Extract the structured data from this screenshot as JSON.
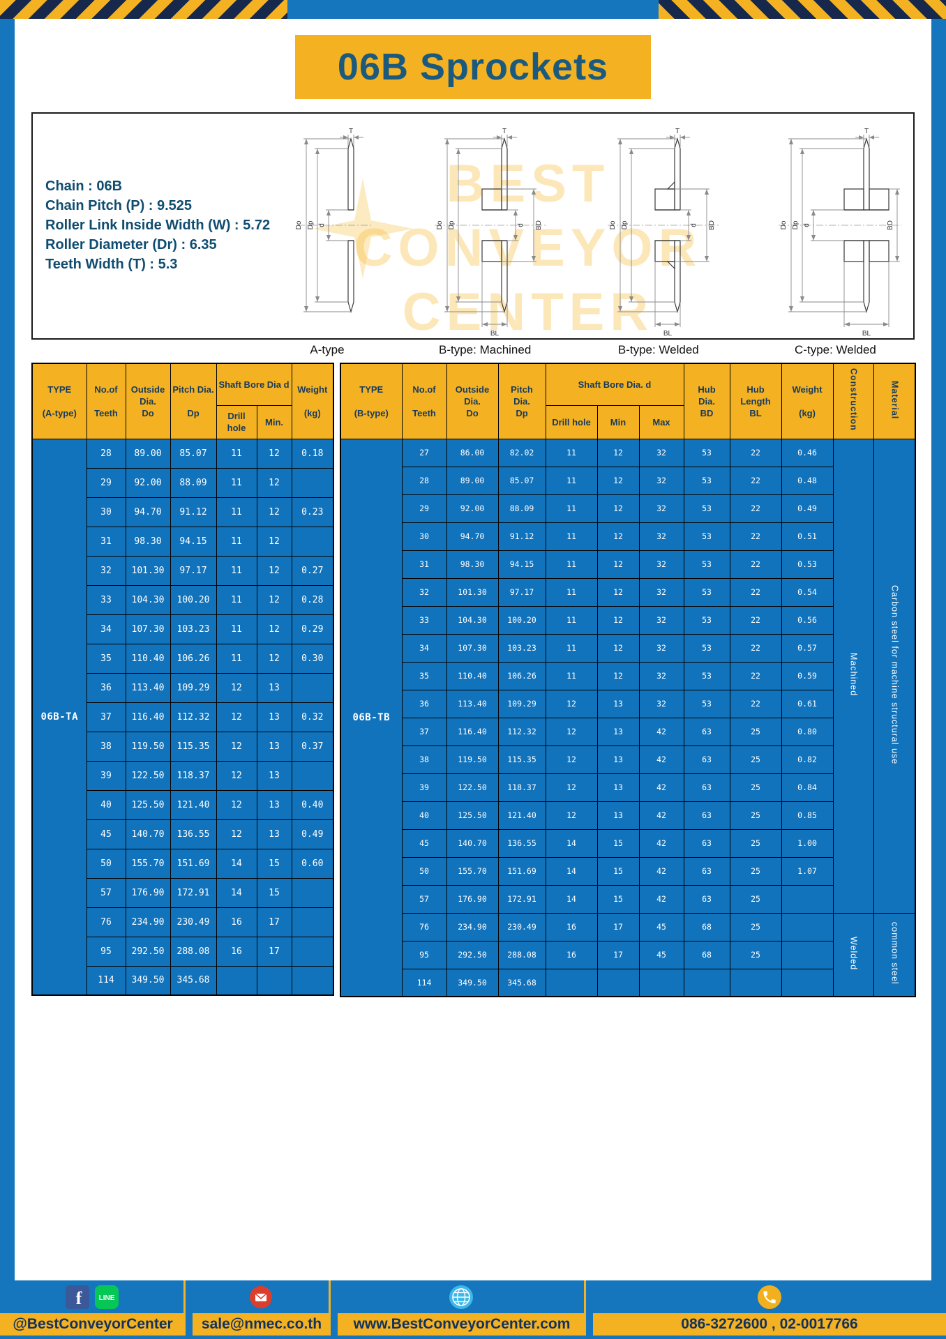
{
  "page": {
    "title": "06B Sprockets"
  },
  "specs": {
    "lines": [
      "Chain : 06B",
      "Chain Pitch (P) : 9.525",
      "Roller Link Inside Width (W) : 5.72",
      "Roller Diameter (Dr) : 6.35",
      "Teeth Width (T) : 5.3"
    ]
  },
  "watermark": {
    "line1": "BEST",
    "line2": "CONVEYOR",
    "line3": "CENTER"
  },
  "diagram": {
    "dims": {
      "do": "Do",
      "dp": "Dp",
      "d": "d",
      "t": "T",
      "bd": "BD",
      "bl": "BL"
    },
    "figures": [
      {
        "caption": "A-type"
      },
      {
        "caption": "B-type: Machined"
      },
      {
        "caption": "B-type: Welded"
      },
      {
        "caption": "C-type: Welded"
      }
    ]
  },
  "table_a": {
    "type_label": "06B-TA",
    "headers": {
      "type": "TYPE\n\n(A-type)",
      "teeth": "No.of\n\nTeeth",
      "outside": "Outside\nDia.\nDo",
      "pitch": "Pitch Dia.\n\nDp",
      "shaft_bore": "Shaft Bore Dia d",
      "drill": "Drill hole",
      "min": "Min.",
      "weight": "Weight\n\n(kg)"
    },
    "rows": [
      [
        "28",
        "89.00",
        "85.07",
        "11",
        "12",
        "0.18"
      ],
      [
        "29",
        "92.00",
        "88.09",
        "11",
        "12",
        ""
      ],
      [
        "30",
        "94.70",
        "91.12",
        "11",
        "12",
        "0.23"
      ],
      [
        "31",
        "98.30",
        "94.15",
        "11",
        "12",
        ""
      ],
      [
        "32",
        "101.30",
        "97.17",
        "11",
        "12",
        "0.27"
      ],
      [
        "33",
        "104.30",
        "100.20",
        "11",
        "12",
        "0.28"
      ],
      [
        "34",
        "107.30",
        "103.23",
        "11",
        "12",
        "0.29"
      ],
      [
        "35",
        "110.40",
        "106.26",
        "11",
        "12",
        "0.30"
      ],
      [
        "36",
        "113.40",
        "109.29",
        "12",
        "13",
        ""
      ],
      [
        "37",
        "116.40",
        "112.32",
        "12",
        "13",
        "0.32"
      ],
      [
        "38",
        "119.50",
        "115.35",
        "12",
        "13",
        "0.37"
      ],
      [
        "39",
        "122.50",
        "118.37",
        "12",
        "13",
        ""
      ],
      [
        "40",
        "125.50",
        "121.40",
        "12",
        "13",
        "0.40"
      ],
      [
        "45",
        "140.70",
        "136.55",
        "12",
        "13",
        "0.49"
      ],
      [
        "50",
        "155.70",
        "151.69",
        "14",
        "15",
        "0.60"
      ],
      [
        "57",
        "176.90",
        "172.91",
        "14",
        "15",
        ""
      ],
      [
        "76",
        "234.90",
        "230.49",
        "16",
        "17",
        ""
      ],
      [
        "95",
        "292.50",
        "288.08",
        "16",
        "17",
        ""
      ],
      [
        "114",
        "349.50",
        "345.68",
        "",
        "",
        ""
      ]
    ]
  },
  "table_b": {
    "type_label": "06B-TB",
    "headers": {
      "type": "TYPE\n\n(B-type)",
      "teeth": "No.of\n\nTeeth",
      "outside": "Outside\nDia.\nDo",
      "pitch": "Pitch\nDia.\nDp",
      "shaft_bore": "Shaft Bore Dia. d",
      "drill": "Drill hole",
      "min": "Min",
      "max": "Max",
      "hub_dia": "Hub\nDia.\nBD",
      "hub_len": "Hub\nLength\nBL",
      "weight": "Weight\n\n(kg)",
      "construction": "Construction",
      "material": "Material"
    },
    "construction_groups": [
      {
        "label": "Machined",
        "rows": 17
      },
      {
        "label": "Welded",
        "rows": 3
      }
    ],
    "material_groups": [
      {
        "label": "Carbon steel for machine structural use",
        "rows": 17
      },
      {
        "label": "common steel",
        "rows": 3
      }
    ],
    "rows": [
      [
        "27",
        "86.00",
        "82.02",
        "11",
        "12",
        "32",
        "53",
        "22",
        "0.46"
      ],
      [
        "28",
        "89.00",
        "85.07",
        "11",
        "12",
        "32",
        "53",
        "22",
        "0.48"
      ],
      [
        "29",
        "92.00",
        "88.09",
        "11",
        "12",
        "32",
        "53",
        "22",
        "0.49"
      ],
      [
        "30",
        "94.70",
        "91.12",
        "11",
        "12",
        "32",
        "53",
        "22",
        "0.51"
      ],
      [
        "31",
        "98.30",
        "94.15",
        "11",
        "12",
        "32",
        "53",
        "22",
        "0.53"
      ],
      [
        "32",
        "101.30",
        "97.17",
        "11",
        "12",
        "32",
        "53",
        "22",
        "0.54"
      ],
      [
        "33",
        "104.30",
        "100.20",
        "11",
        "12",
        "32",
        "53",
        "22",
        "0.56"
      ],
      [
        "34",
        "107.30",
        "103.23",
        "11",
        "12",
        "32",
        "53",
        "22",
        "0.57"
      ],
      [
        "35",
        "110.40",
        "106.26",
        "11",
        "12",
        "32",
        "53",
        "22",
        "0.59"
      ],
      [
        "36",
        "113.40",
        "109.29",
        "12",
        "13",
        "32",
        "53",
        "22",
        "0.61"
      ],
      [
        "37",
        "116.40",
        "112.32",
        "12",
        "13",
        "42",
        "63",
        "25",
        "0.80"
      ],
      [
        "38",
        "119.50",
        "115.35",
        "12",
        "13",
        "42",
        "63",
        "25",
        "0.82"
      ],
      [
        "39",
        "122.50",
        "118.37",
        "12",
        "13",
        "42",
        "63",
        "25",
        "0.84"
      ],
      [
        "40",
        "125.50",
        "121.40",
        "12",
        "13",
        "42",
        "63",
        "25",
        "0.85"
      ],
      [
        "45",
        "140.70",
        "136.55",
        "14",
        "15",
        "42",
        "63",
        "25",
        "1.00"
      ],
      [
        "50",
        "155.70",
        "151.69",
        "14",
        "15",
        "42",
        "63",
        "25",
        "1.07"
      ],
      [
        "57",
        "176.90",
        "172.91",
        "14",
        "15",
        "42",
        "63",
        "25",
        ""
      ],
      [
        "76",
        "234.90",
        "230.49",
        "16",
        "17",
        "45",
        "68",
        "25",
        ""
      ],
      [
        "95",
        "292.50",
        "288.08",
        "16",
        "17",
        "45",
        "68",
        "25",
        ""
      ],
      [
        "114",
        "349.50",
        "345.68",
        "",
        "",
        "",
        "",
        "",
        ""
      ]
    ]
  },
  "footer": {
    "facebook_label": "f",
    "line_label": "LINE",
    "social_handle": "@BestConveyorCenter",
    "email": "sale@nmec.co.th",
    "website": "www.BestConveyorCenter.com",
    "phones": "086-3272600 , 02-0017766"
  },
  "colors": {
    "frame_blue": "#1576be",
    "table_blue": "#1173bc",
    "accent_yellow": "#f4b223",
    "title_teal": "#1c5a7d",
    "footer_navy": "#12325e"
  }
}
